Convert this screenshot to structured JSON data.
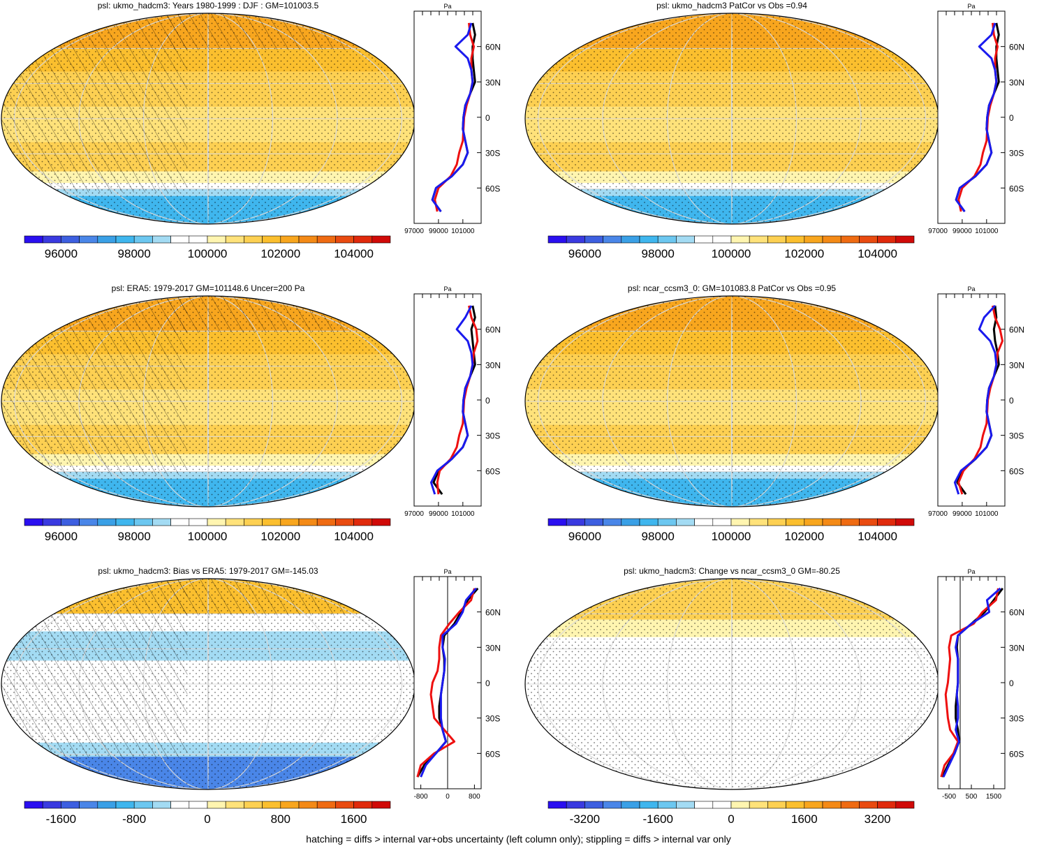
{
  "footer": "hatching = diffs > internal var+obs uncertainty (left column only); stippling = diffs > internal var only",
  "abs_colors": [
    "#2a0ff0",
    "#3a3ae0",
    "#3d5fe0",
    "#4a86e8",
    "#3aa0e6",
    "#3fb6ee",
    "#6cc7f0",
    "#a3dbf3",
    "#ffffff",
    "#ffffff",
    "#fff5b0",
    "#ffe27a",
    "#fdd052",
    "#fbbf2e",
    "#f8a61e",
    "#f48a16",
    "#ef6b12",
    "#e94b10",
    "#e02a0c",
    "#d00a08"
  ],
  "diff_colors": [
    "#2a0ff0",
    "#3a3ae0",
    "#3d5fe0",
    "#4a86e8",
    "#3aa0e6",
    "#3fb6ee",
    "#6cc7f0",
    "#a3dbf3",
    "#ffffff",
    "#ffffff",
    "#fff5b0",
    "#ffe27a",
    "#fdd052",
    "#fbbf2e",
    "#f8a61e",
    "#f48a16",
    "#ef6b12",
    "#e94b10",
    "#e02a0c",
    "#d00a08"
  ],
  "line_colors": {
    "black": "#000000",
    "red": "#ee1010",
    "blue": "#1a1aee"
  },
  "chart_data": [
    {
      "type": "heatmap",
      "title": "psl: ukmo_hadcm3: Years 1980-1999 : DJF : GM=101003.5",
      "colorbar_labels": [
        "96000",
        "98000",
        "100000",
        "102000",
        "104000"
      ],
      "overlay": "hatching+stippling",
      "profile": {
        "type": "line",
        "xlabel": "Pa",
        "xticks": [
          "97000",
          "99000",
          "101000"
        ],
        "xlim": [
          97000,
          102500
        ],
        "yticks": [
          "60N",
          "30N",
          "0",
          "30S",
          "60S"
        ],
        "ylim": [
          -90,
          90
        ],
        "y": [
          -80,
          -70,
          -60,
          -50,
          -40,
          -30,
          -20,
          -10,
          0,
          10,
          20,
          30,
          40,
          50,
          60,
          70,
          80
        ],
        "series": [
          {
            "color": "black",
            "values": [
              99200,
              98500,
              98800,
              100100,
              101000,
              101400,
              101200,
              101000,
              101050,
              101200,
              101600,
              102000,
              101900,
              101800,
              101800,
              102000,
              101800
            ]
          },
          {
            "color": "red",
            "values": [
              98900,
              98700,
              99000,
              100000,
              100500,
              100700,
              101000,
              101050,
              101100,
              101300,
              101600,
              101800,
              101700,
              101700,
              101900,
              101600,
              101500
            ]
          },
          {
            "color": "blue",
            "values": [
              99200,
              98500,
              98800,
              100100,
              101000,
              101400,
              101200,
              101000,
              101050,
              101200,
              101600,
              101800,
              101700,
              101400,
              100400,
              101400,
              101700
            ]
          }
        ]
      }
    },
    {
      "type": "heatmap",
      "title": "psl: ukmo_hadcm3 PatCor vs Obs =0.94",
      "colorbar_labels": [
        "96000",
        "98000",
        "100000",
        "102000",
        "104000"
      ],
      "overlay": "stippling",
      "profile": {
        "type": "line",
        "xlabel": "Pa",
        "xticks": [
          "97000",
          "99000",
          "101000"
        ],
        "xlim": [
          97000,
          102500
        ],
        "yticks": [
          "60N",
          "30N",
          "0",
          "30S",
          "60S"
        ],
        "ylim": [
          -90,
          90
        ],
        "y": [
          -80,
          -70,
          -60,
          -50,
          -40,
          -30,
          -20,
          -10,
          0,
          10,
          20,
          30,
          40,
          50,
          60,
          70,
          80
        ],
        "series": [
          {
            "color": "black",
            "values": [
              99200,
              98500,
              98800,
              100100,
              101000,
              101400,
              101200,
              101000,
              101050,
              101200,
              101600,
              102000,
              101900,
              101800,
              101800,
              102000,
              101800
            ]
          },
          {
            "color": "red",
            "values": [
              98900,
              98700,
              99000,
              100000,
              100500,
              100700,
              101000,
              101050,
              101100,
              101300,
              101600,
              101800,
              101700,
              101700,
              101900,
              101600,
              101500
            ]
          },
          {
            "color": "blue",
            "values": [
              99200,
              98500,
              98800,
              100100,
              101000,
              101400,
              101200,
              101000,
              101050,
              101200,
              101600,
              101800,
              101700,
              101400,
              100400,
              101400,
              101700
            ]
          }
        ]
      }
    },
    {
      "type": "heatmap",
      "title": "psl: ERA5: 1979-2017 GM=101148.6 Uncer=200 Pa",
      "colorbar_labels": [
        "96000",
        "98000",
        "100000",
        "102000",
        "104000"
      ],
      "overlay": "hatching+stippling",
      "profile": {
        "type": "line",
        "xlabel": "Pa",
        "xticks": [
          "97000",
          "99000",
          "101000"
        ],
        "xlim": [
          97000,
          102500
        ],
        "yticks": [
          "60N",
          "30N",
          "0",
          "30S",
          "60S"
        ],
        "ylim": [
          -90,
          90
        ],
        "y": [
          -80,
          -70,
          -60,
          -50,
          -40,
          -30,
          -20,
          -10,
          0,
          10,
          20,
          30,
          40,
          50,
          60,
          70,
          80
        ],
        "series": [
          {
            "color": "black",
            "values": [
              99300,
              98600,
              99000,
              100100,
              101000,
              101400,
              101200,
              101000,
              101050,
              101200,
              101600,
              102000,
              101900,
              101800,
              101700,
              102000,
              101800
            ]
          },
          {
            "color": "red",
            "values": [
              99000,
              98900,
              99100,
              100000,
              100500,
              100700,
              101000,
              101050,
              101100,
              101300,
              101600,
              101800,
              101900,
              102200,
              102100,
              101700,
              101500
            ]
          },
          {
            "color": "blue",
            "values": [
              98700,
              98400,
              98900,
              100100,
              101000,
              101400,
              101200,
              101000,
              101050,
              101200,
              101600,
              101800,
              101700,
              101400,
              100500,
              101200,
              101700
            ]
          }
        ]
      }
    },
    {
      "type": "heatmap",
      "title": "psl: ncar_ccsm3_0: GM=101083.8 PatCor vs Obs =0.95",
      "colorbar_labels": [
        "96000",
        "98000",
        "100000",
        "102000",
        "104000"
      ],
      "overlay": "stippling",
      "profile": {
        "type": "line",
        "xlabel": "Pa",
        "xticks": [
          "97000",
          "99000",
          "101000"
        ],
        "xlim": [
          97000,
          102500
        ],
        "yticks": [
          "60N",
          "30N",
          "0",
          "30S",
          "60S"
        ],
        "ylim": [
          -90,
          90
        ],
        "y": [
          -80,
          -70,
          -60,
          -50,
          -40,
          -30,
          -20,
          -10,
          0,
          10,
          20,
          30,
          40,
          50,
          60,
          70,
          80
        ],
        "series": [
          {
            "color": "black",
            "values": [
              99300,
              98600,
              99000,
              100100,
              101000,
              101400,
              101200,
              101000,
              101050,
              101200,
              101600,
              102000,
              101900,
              101700,
              101600,
              101800,
              101700
            ]
          },
          {
            "color": "red",
            "values": [
              99000,
              98700,
              99100,
              100000,
              100500,
              100700,
              101000,
              101050,
              101100,
              101300,
              101600,
              101800,
              101900,
              102300,
              102100,
              101700,
              101500
            ]
          },
          {
            "color": "blue",
            "values": [
              98700,
              98400,
              98900,
              100100,
              101000,
              101400,
              101200,
              101000,
              101050,
              101200,
              101600,
              101800,
              101700,
              101300,
              100400,
              100800,
              101700
            ]
          }
        ]
      }
    },
    {
      "type": "heatmap",
      "title": "psl: ukmo_hadcm3: Bias vs ERA5: 1979-2017 GM=-145.03",
      "colorbar_labels": [
        "-1600",
        "-800",
        "0",
        "800",
        "1600"
      ],
      "overlay": "hatching+stippling",
      "profile": {
        "type": "line",
        "xlabel": "Pa",
        "xticks": [
          "-800",
          "0",
          "800"
        ],
        "xlim": [
          -1000,
          1000
        ],
        "yticks": [
          "60N",
          "30N",
          "0",
          "30S",
          "60S"
        ],
        "ylim": [
          -90,
          90
        ],
        "y": [
          -80,
          -70,
          -60,
          -50,
          -40,
          -30,
          -20,
          -10,
          0,
          10,
          20,
          30,
          40,
          50,
          60,
          70,
          80
        ],
        "series": [
          {
            "color": "black",
            "values": [
              -900,
              -700,
              -350,
              -50,
              -150,
              -250,
              -250,
              -200,
              -150,
              -100,
              -100,
              -150,
              -100,
              200,
              400,
              600,
              900
            ]
          },
          {
            "color": "red",
            "values": [
              -900,
              -800,
              -400,
              200,
              -100,
              -400,
              -450,
              -500,
              -450,
              -300,
              -250,
              -250,
              -200,
              50,
              350,
              700,
              800
            ]
          },
          {
            "color": "blue",
            "values": [
              -800,
              -650,
              -350,
              -50,
              -150,
              -200,
              -200,
              -200,
              -150,
              -100,
              -80,
              -150,
              -150,
              250,
              450,
              550,
              850
            ]
          }
        ]
      }
    },
    {
      "type": "heatmap",
      "title": "psl: ukmo_hadcm3: Change vs ncar_ccsm3_0 GM=-80.25",
      "colorbar_labels": [
        "-3200",
        "-1600",
        "0",
        "1600",
        "3200"
      ],
      "overlay": "stippling",
      "profile": {
        "type": "line",
        "xlabel": "Pa",
        "xticks": [
          "-500",
          "500",
          "1500"
        ],
        "xlim": [
          -1000,
          2000
        ],
        "yticks": [
          "60N",
          "30N",
          "0",
          "30S",
          "60S"
        ],
        "ylim": [
          -90,
          90
        ],
        "y": [
          -80,
          -70,
          -60,
          -50,
          -40,
          -30,
          -20,
          -10,
          0,
          10,
          20,
          30,
          40,
          50,
          60,
          70,
          80
        ],
        "series": [
          {
            "color": "black",
            "values": [
              -800,
              -550,
              -250,
              -50,
              -100,
              -200,
              -200,
              -150,
              -100,
              -100,
              -100,
              -150,
              -100,
              500,
              1100,
              1500,
              1900
            ]
          },
          {
            "color": "red",
            "values": [
              -850,
              -700,
              -300,
              -100,
              -450,
              -550,
              -600,
              -650,
              -550,
              -500,
              -450,
              -500,
              -400,
              600,
              1000,
              1600,
              1700
            ]
          },
          {
            "color": "blue",
            "values": [
              -750,
              -500,
              -250,
              -50,
              -200,
              -100,
              -100,
              -150,
              -100,
              -100,
              -100,
              -200,
              -100,
              500,
              1300,
              1200,
              1800
            ]
          }
        ]
      }
    }
  ]
}
